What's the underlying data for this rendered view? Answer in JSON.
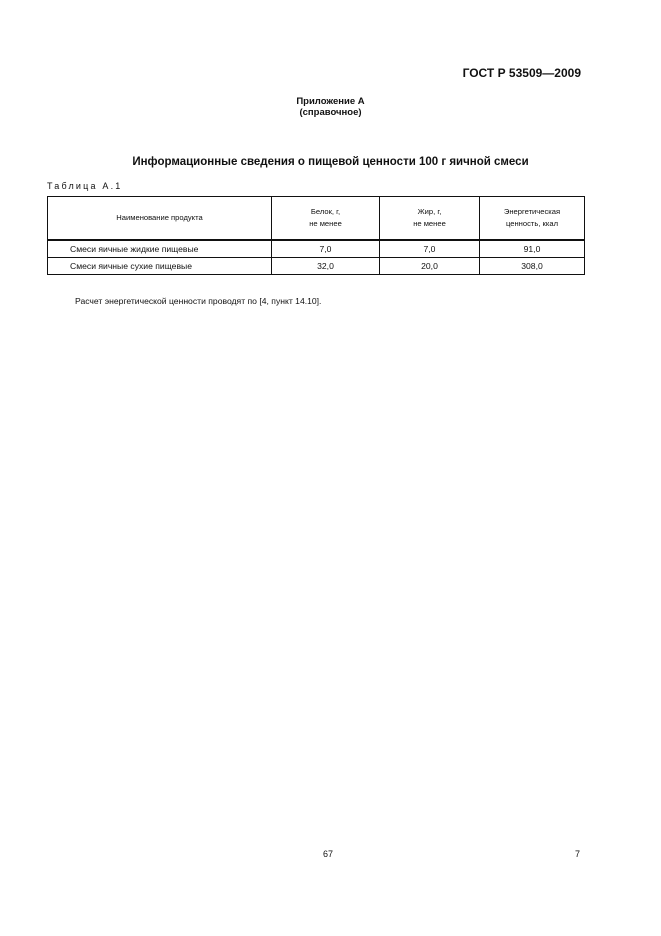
{
  "header": {
    "doc_id": "ГОСТ Р 53509—2009"
  },
  "appendix": {
    "title": "Приложение А",
    "subtitle": "(справочное)"
  },
  "section_title": "Информационные сведения о пищевой ценности 100 г яичной смеси",
  "table": {
    "caption": "Таблица А.1",
    "columns": [
      [
        "Наименование продукта",
        ""
      ],
      [
        "Белок, г,",
        "не менее"
      ],
      [
        "Жир, г,",
        "не менее"
      ],
      [
        "Энергетическая",
        "ценность, ккал"
      ]
    ],
    "rows": [
      [
        "Смеси яичные жидкие пищевые",
        "7,0",
        "7,0",
        "91,0"
      ],
      [
        "Смеси яичные сухие пищевые",
        "32,0",
        "20,0",
        "308,0"
      ]
    ]
  },
  "note": "Расчет энергетической ценности проводят по [4, пункт 14.10].",
  "footer": {
    "page_center": "67",
    "page_right": "7"
  }
}
